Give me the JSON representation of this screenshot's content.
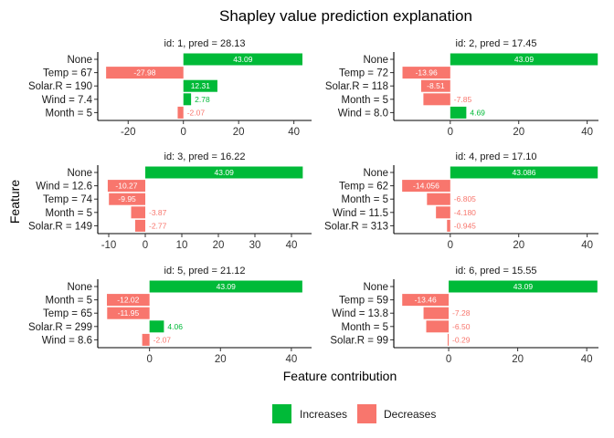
{
  "chart_data": {
    "type": "bar",
    "orientation": "horizontal",
    "title": "Shapley value prediction explanation",
    "xlabel": "Feature contribution",
    "ylabel": "Feature",
    "colors": {
      "Increases": "#00BA38",
      "Decreases": "#F8766D"
    },
    "legend": {
      "position": "bottom",
      "entries": [
        {
          "label": "Increases",
          "color": "#00BA38"
        },
        {
          "label": "Decreases",
          "color": "#F8766D"
        }
      ]
    },
    "panels": [
      {
        "strip": "id: 1, pred = 28.13",
        "xlim": [
          -31,
          46.4
        ],
        "xticks": [
          -20,
          0,
          20,
          40
        ],
        "xtick_labels": [
          "-20",
          "0",
          "20",
          "40"
        ],
        "features": [
          "None",
          "Temp = 67",
          "Solar.R = 190",
          "Wind = 7.4",
          "Month = 5"
        ],
        "values": [
          43.09,
          -27.98,
          12.31,
          2.78,
          -2.07
        ],
        "labels": [
          "43.09",
          "-27.98",
          "12.31",
          "2.78",
          "-2.07"
        ]
      },
      {
        "strip": "id: 2, pred = 17.45",
        "xlim": [
          -16.5,
          43.3
        ],
        "xticks": [
          0,
          20,
          40
        ],
        "xtick_labels": [
          "0",
          "20",
          "40"
        ],
        "features": [
          "None",
          "Temp = 72",
          "Solar.R = 118",
          "Month = 5",
          "Wind = 8.0"
        ],
        "values": [
          43.09,
          -13.96,
          -8.51,
          -7.85,
          4.69
        ],
        "labels": [
          "43.09",
          "-13.96",
          "-8.51",
          "-7.85",
          "4.69"
        ]
      },
      {
        "strip": "id: 3, pred = 16.22",
        "xlim": [
          -13,
          45.5
        ],
        "xticks": [
          -10,
          0,
          10,
          20,
          30,
          40
        ],
        "xtick_labels": [
          "-10",
          "0",
          "10",
          "20",
          "30",
          "40"
        ],
        "features": [
          "None",
          "Wind = 12.6",
          "Temp = 74",
          "Month = 5",
          "Solar.R = 149"
        ],
        "values": [
          43.09,
          -10.27,
          -9.95,
          -3.87,
          -2.77
        ],
        "labels": [
          "43.09",
          "-10.27",
          "-9.95",
          "-3.87",
          "-2.77"
        ]
      },
      {
        "strip": "id: 4, pred = 17.10",
        "xlim": [
          -16.5,
          43.3
        ],
        "xticks": [
          0,
          20,
          40
        ],
        "xtick_labels": [
          "0",
          "20",
          "40"
        ],
        "features": [
          "None",
          "Temp = 62",
          "Month = 5",
          "Wind = 11.5",
          "Solar.R = 313"
        ],
        "values": [
          43.086,
          -14.056,
          -6.805,
          -4.18,
          -0.945
        ],
        "labels": [
          "43.086",
          "-14.056",
          "-6.805",
          "-4.180",
          "-0.945"
        ]
      },
      {
        "strip": "id: 5, pred = 21.12",
        "xlim": [
          -14.6,
          45.7
        ],
        "xticks": [
          0,
          20,
          40
        ],
        "xtick_labels": [
          "0",
          "20",
          "40"
        ],
        "features": [
          "None",
          "Month = 5",
          "Temp = 65",
          "Solar.R = 299",
          "Wind = 8.6"
        ],
        "values": [
          43.09,
          -12.02,
          -11.95,
          4.06,
          -2.07
        ],
        "labels": [
          "43.09",
          "-12.02",
          "-11.95",
          "4.06",
          "-2.07"
        ]
      },
      {
        "strip": "id: 6, pred = 15.55",
        "xlim": [
          -15.9,
          43.4
        ],
        "xticks": [
          0,
          20,
          40
        ],
        "xtick_labels": [
          "0",
          "20",
          "40"
        ],
        "features": [
          "None",
          "Temp = 59",
          "Wind = 13.8",
          "Month = 5",
          "Solar.R = 99"
        ],
        "values": [
          43.09,
          -13.46,
          -7.28,
          -6.5,
          -0.29
        ],
        "labels": [
          "43.09",
          "-13.46",
          "-7.28",
          "-6.50",
          "-0.29"
        ]
      }
    ]
  }
}
